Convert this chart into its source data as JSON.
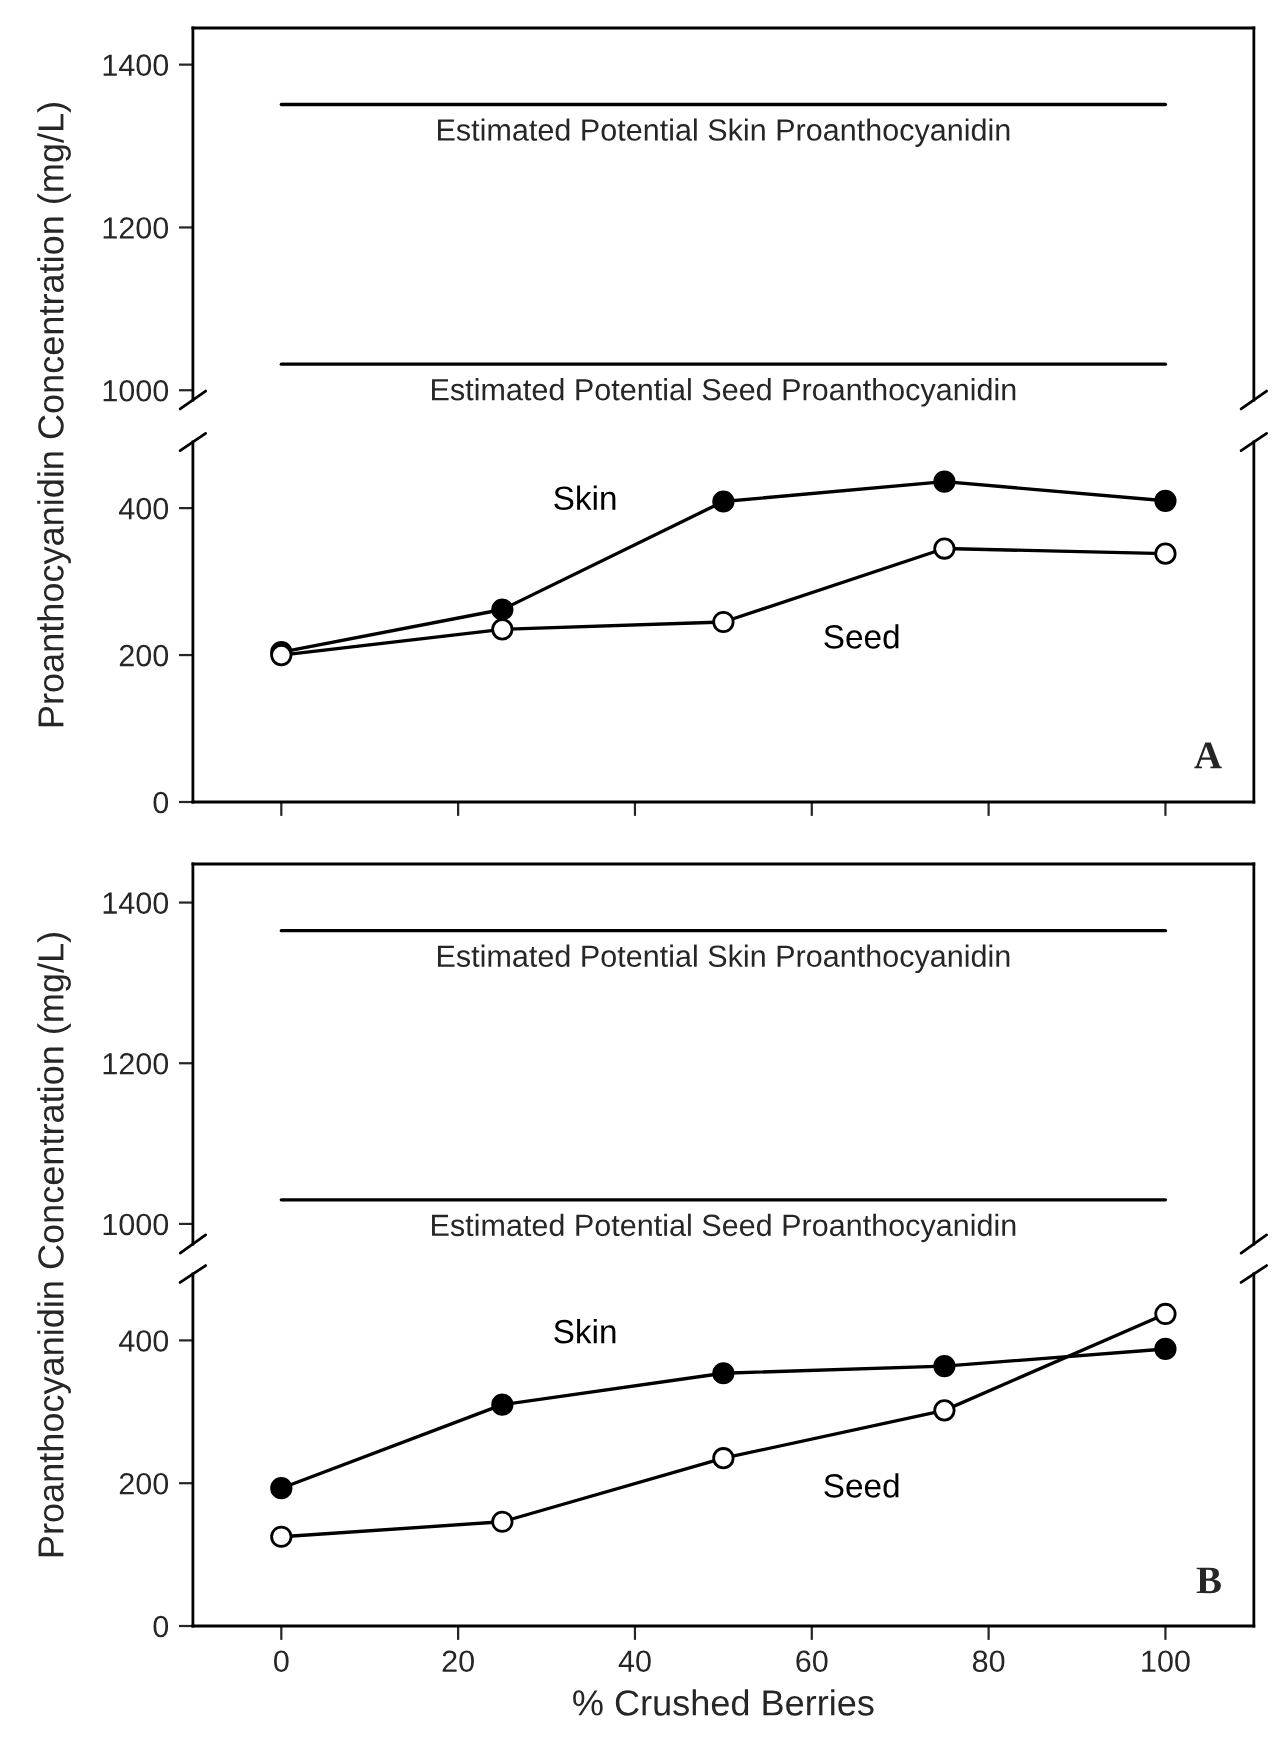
{
  "chart_data": [
    {
      "type": "line",
      "xlim": [
        -10,
        110
      ],
      "ylim": [
        988,
        1445
      ],
      "yticks": [
        1000,
        1200,
        1400
      ],
      "tick_labels": "y",
      "ylabel": "Proanthocyanidin Concentration (mg/L)",
      "ref_lines": [
        {
          "axis": "y",
          "value": 1351,
          "label": "Estimated Potential Skin Proanthocyanidin",
          "color": "#000000"
        },
        {
          "axis": "y",
          "value": 1032,
          "label": "Estimated Potential Seed Proanthocyanidin",
          "color": "#000000"
        }
      ]
    },
    {
      "type": "line",
      "x": [
        0,
        25,
        50,
        75,
        100
      ],
      "xlim": [
        -10,
        110
      ],
      "xticks": [
        0,
        20,
        40,
        60,
        80,
        100
      ],
      "ylim": [
        0,
        490
      ],
      "yticks": [
        0,
        200,
        400
      ],
      "tick_labels": "y",
      "marker": "circle",
      "series": [
        {
          "name": "Skin",
          "color": "#000000",
          "values": [
            204,
            262,
            409,
            436,
            410
          ]
        },
        {
          "name": "Seed",
          "color": "#000000",
          "marker": "open circle",
          "values": [
            200,
            235,
            245,
            345,
            338
          ]
        }
      ],
      "annotations": [
        "A"
      ]
    },
    {
      "type": "line",
      "xlim": [
        -10,
        110
      ],
      "ylim": [
        975,
        1448
      ],
      "yticks": [
        1000,
        1200,
        1400
      ],
      "tick_labels": "y",
      "ylabel": "Proanthocyanidin Concentration (mg/L)",
      "ref_lines": [
        {
          "axis": "y",
          "value": 1365,
          "label": "Estimated Potential Skin Proanthocyanidin",
          "color": "#000000"
        },
        {
          "axis": "y",
          "value": 1030,
          "label": "Estimated Potential Seed Proanthocyanidin",
          "color": "#000000"
        }
      ]
    },
    {
      "type": "line",
      "x": [
        0,
        25,
        50,
        75,
        100
      ],
      "xlim": [
        -10,
        110
      ],
      "xticks": [
        0,
        20,
        40,
        60,
        80,
        100
      ],
      "ylim": [
        0,
        493
      ],
      "yticks": [
        0,
        200,
        400
      ],
      "marker": "circle",
      "xlabel": "% Crushed Berries",
      "series": [
        {
          "name": "Skin",
          "color": "#000000",
          "values": [
            193,
            310,
            354,
            364,
            388
          ]
        },
        {
          "name": "Seed",
          "color": "#000000",
          "marker": "open circle",
          "values": [
            125,
            146,
            235,
            302,
            437
          ]
        }
      ],
      "annotations": [
        "B"
      ]
    }
  ]
}
